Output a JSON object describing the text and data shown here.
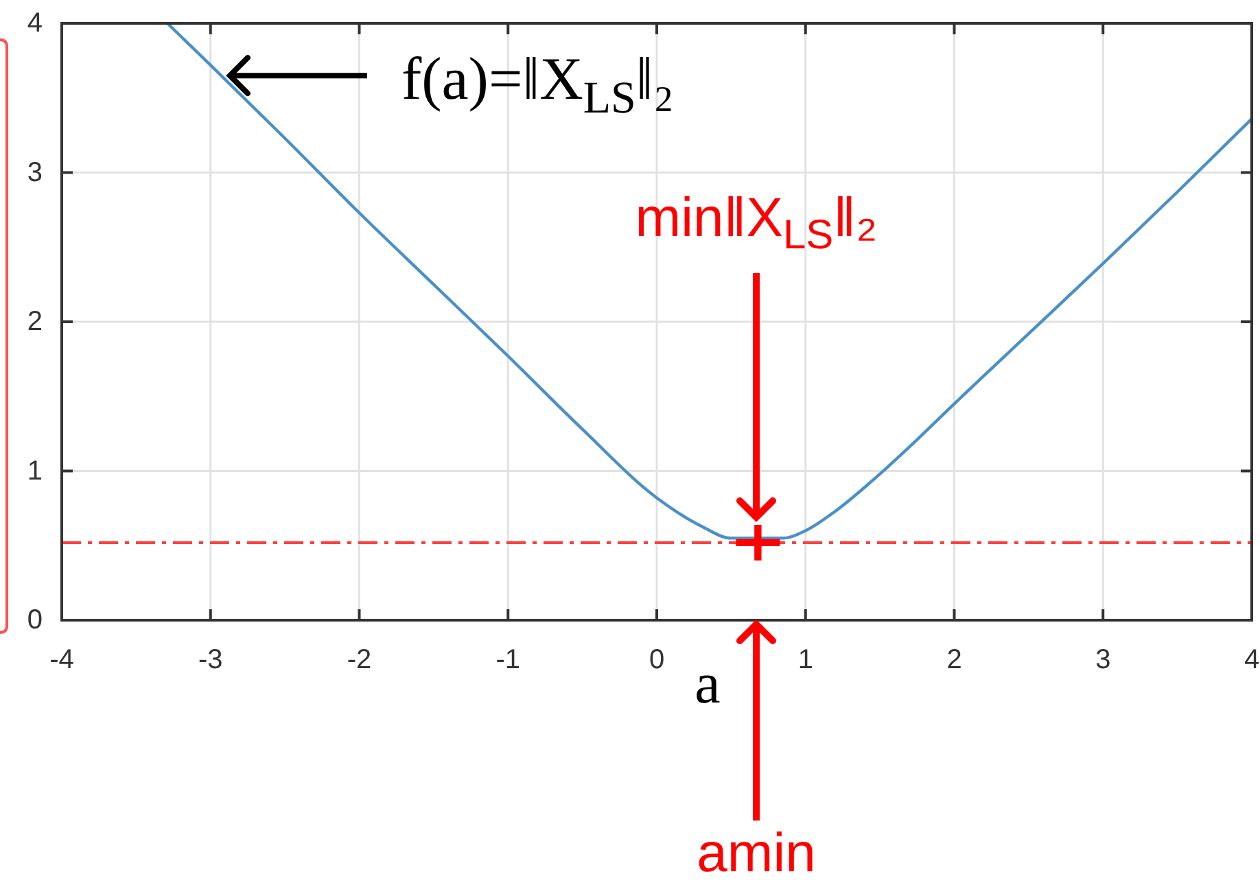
{
  "chart_data": {
    "type": "line",
    "xlabel": "a",
    "xlim": [
      -4,
      4
    ],
    "ylim": [
      0,
      4
    ],
    "xticks": [
      -4,
      -3,
      -2,
      -1,
      0,
      1,
      2,
      3,
      4
    ],
    "yticks": [
      0,
      1,
      2,
      3,
      4
    ],
    "grid": true,
    "series": [
      {
        "color": "#4a90c8",
        "x": [
          -3.29,
          -3,
          -2.5,
          -2,
          -1.5,
          -1,
          -0.5,
          0,
          0.3,
          0.5,
          0.85,
          1,
          1.2,
          1.5,
          1.75,
          2,
          2.5,
          3,
          3.5,
          4
        ],
        "values": [
          4.0,
          3.72,
          3.23,
          2.73,
          2.25,
          1.77,
          1.28,
          0.82,
          0.63,
          0.55,
          0.55,
          0.6,
          0.73,
          0.98,
          1.21,
          1.45,
          1.92,
          2.39,
          2.87,
          3.36
        ]
      },
      {
        "type": "scatter",
        "color": "#ff0000",
        "marker": "cross",
        "x": [
          0.68
        ],
        "values": [
          0.52
        ]
      }
    ],
    "ref_lines": [
      {
        "axis": "y",
        "value": 0.52,
        "color": "#ff4040",
        "line_style": "dashdot"
      }
    ],
    "annotations": [
      {
        "text": "f(a)=‖X$_{LS}$‖₂",
        "x": -2.87,
        "y": 3.65
      },
      "min‖X$_{LS}$‖₂",
      "amin"
    ]
  }
}
